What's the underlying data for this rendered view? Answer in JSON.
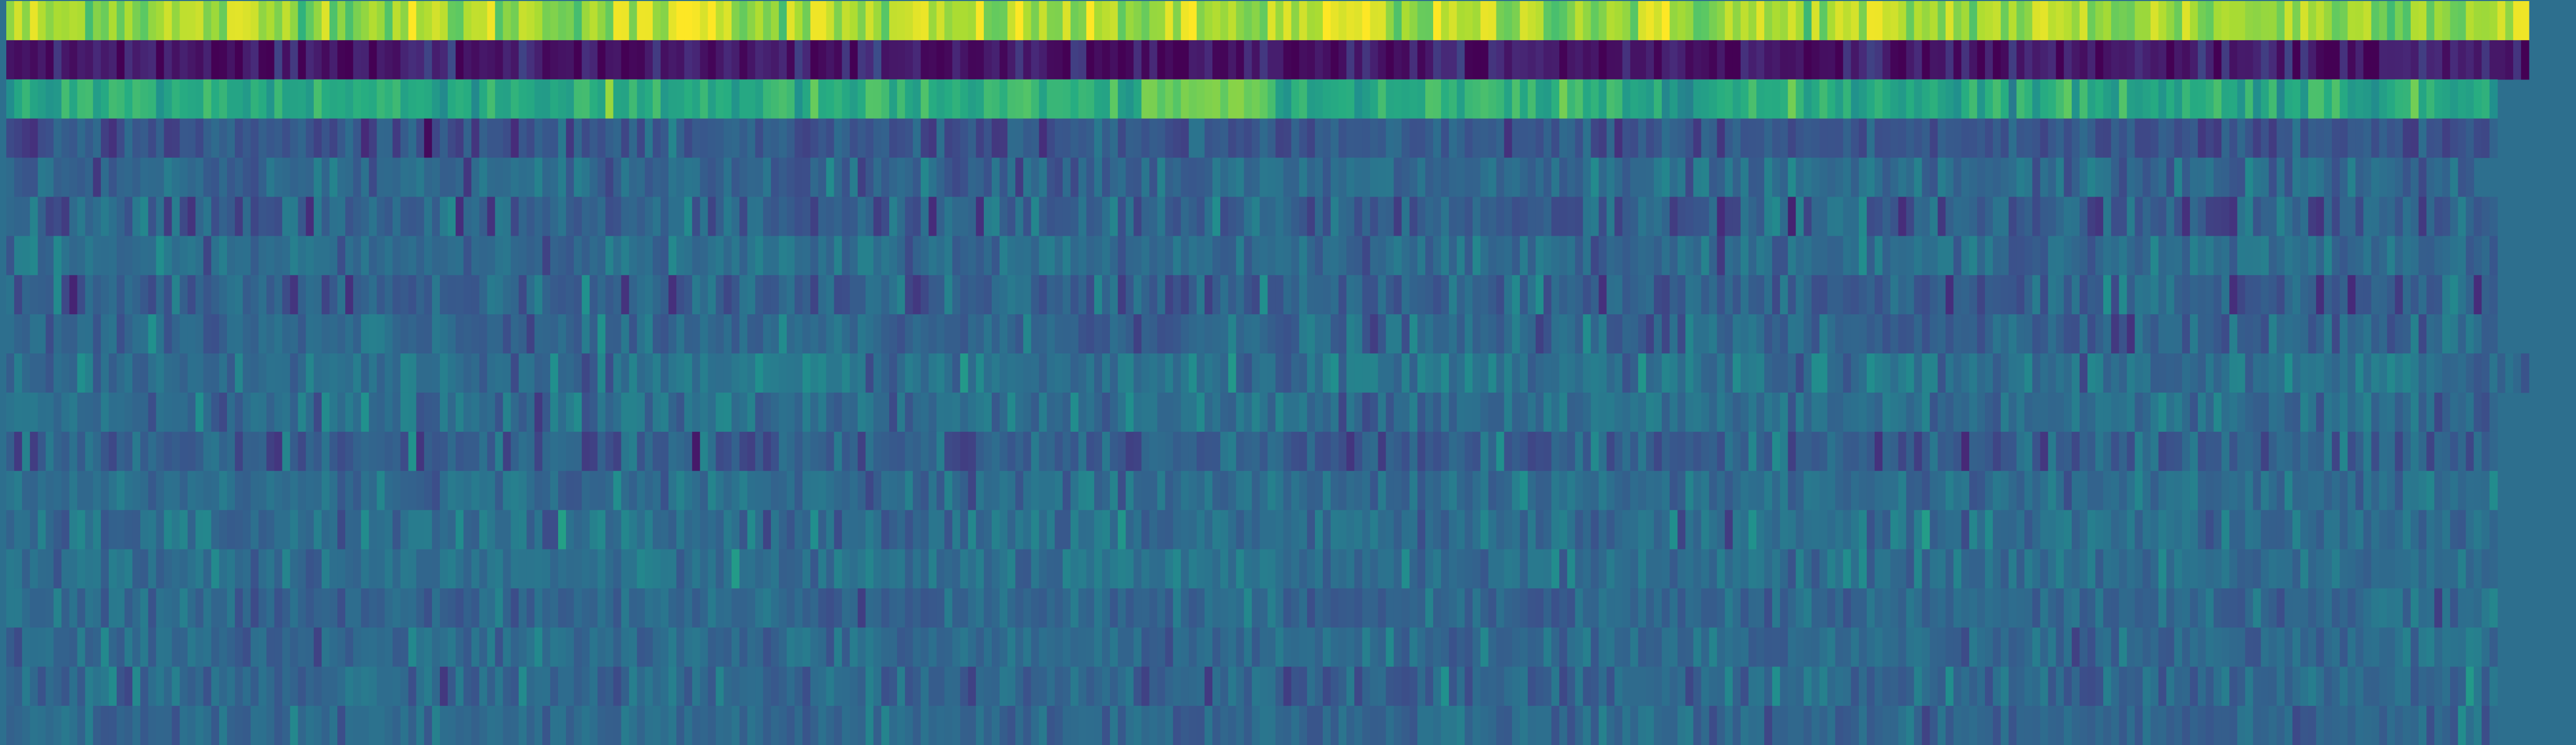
{
  "chart_data": {
    "type": "heatmap",
    "title": "",
    "xlabel": "",
    "ylabel": "",
    "n_rows": 19,
    "n_cols": 320,
    "colormap": "viridis",
    "color_range": [
      0,
      1
    ],
    "background_color": "#2d6f8e",
    "row_means": [
      0.86,
      0.07,
      0.62,
      0.27,
      0.34,
      0.31,
      0.36,
      0.31,
      0.33,
      0.37,
      0.37,
      0.31,
      0.36,
      0.36,
      0.37,
      0.34,
      0.35,
      0.34,
      0.34
    ],
    "row_spread": [
      0.08,
      0.06,
      0.07,
      0.06,
      0.06,
      0.08,
      0.05,
      0.07,
      0.06,
      0.06,
      0.06,
      0.07,
      0.05,
      0.06,
      0.05,
      0.05,
      0.05,
      0.06,
      0.05
    ],
    "row_extents": [
      1.0,
      1.0,
      0.99,
      0.99,
      0.98,
      0.99,
      0.99,
      0.99,
      0.99,
      1.0,
      0.99,
      0.99,
      0.99,
      0.99,
      0.99,
      0.99,
      0.99,
      0.99,
      0.99
    ],
    "highlight_bands": [
      {
        "row": 0,
        "from": 0.26,
        "to": 0.285,
        "value": 0.97
      },
      {
        "row": 0,
        "from": 0.52,
        "to": 0.545,
        "value": 0.97
      },
      {
        "row": 2,
        "from": 0.45,
        "to": 0.5,
        "value": 0.78
      },
      {
        "row": 1,
        "from": 0.36,
        "to": 0.37,
        "value": 0.0
      }
    ]
  }
}
